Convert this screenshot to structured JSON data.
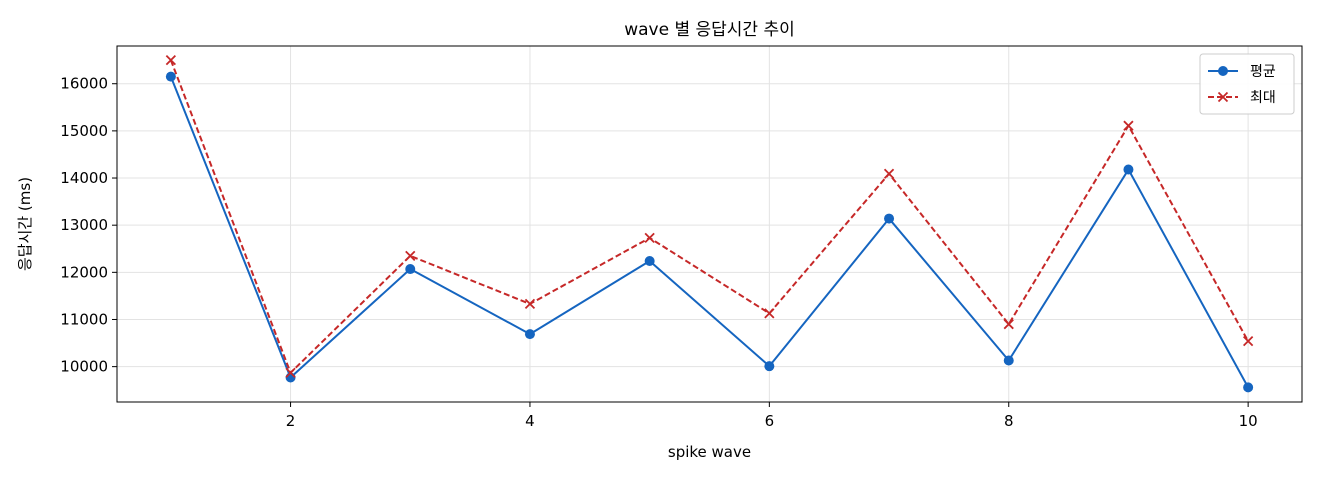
{
  "chart_data": {
    "type": "line",
    "title": "wave 별 응답시간 추이",
    "xlabel": "spike wave",
    "ylabel": "응답시간 (ms)",
    "x": [
      1,
      2,
      3,
      4,
      5,
      6,
      7,
      8,
      9,
      10
    ],
    "xlim": [
      0.55,
      10.45
    ],
    "ylim": [
      9250,
      16800
    ],
    "xticks": [
      2,
      4,
      6,
      8,
      10
    ],
    "yticks": [
      10000,
      11000,
      12000,
      13000,
      14000,
      15000,
      16000
    ],
    "grid": true,
    "legend_position": "top-right",
    "series": [
      {
        "name": "평균",
        "color": "#1565c0",
        "line_style": "solid",
        "marker": "circle",
        "values": [
          16150,
          9770,
          12070,
          10690,
          12240,
          10010,
          13140,
          10130,
          14180,
          9560
        ]
      },
      {
        "name": "최대",
        "color": "#c62828",
        "line_style": "dashed",
        "marker": "x",
        "values": [
          16500,
          9870,
          12350,
          11330,
          12730,
          11130,
          14090,
          10900,
          15110,
          10540
        ]
      }
    ]
  }
}
